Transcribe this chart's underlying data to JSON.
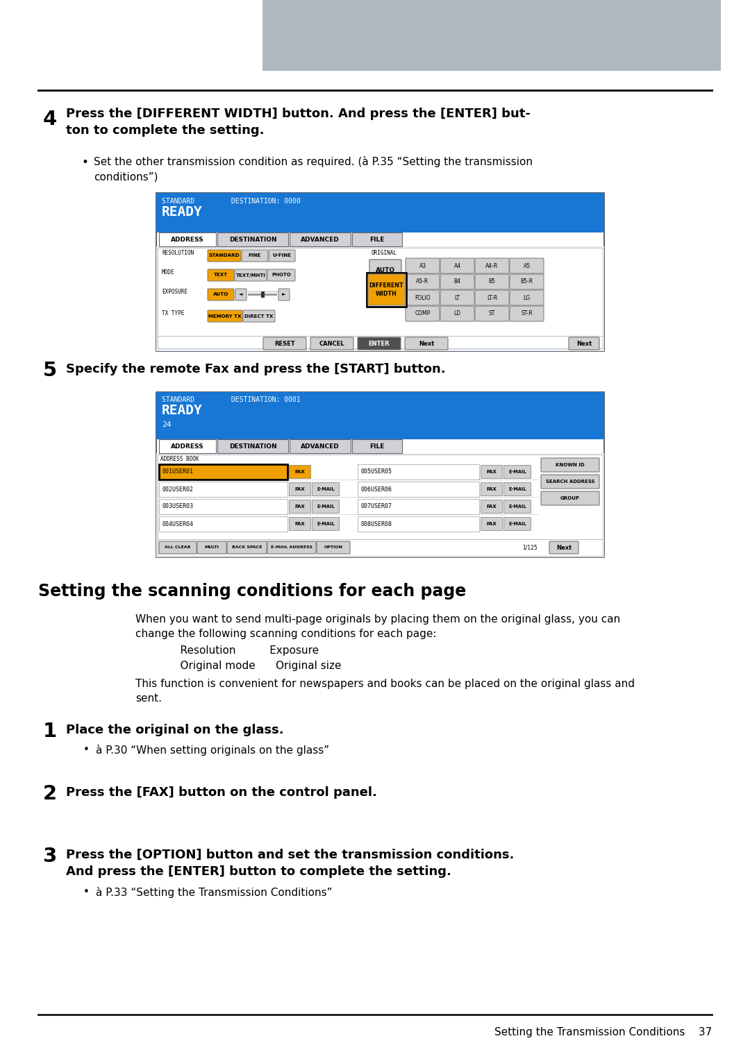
{
  "page_bg": "#ffffff",
  "header_bg": "#adb9bf",
  "footer_line_color": "#1a1a1a",
  "top_line_color": "#1a1a1a",
  "footer_text": "Setting the Transmission Conditions    37",
  "step4_bold": "Press the [DIFFERENT WIDTH] button. And press the [ENTER] but-\nton to complete the setting.",
  "step4_bullet": "Set the other transmission condition as required. (à P.35 “Setting the transmission\nconditions”)",
  "step5_bold": "Specify the remote Fax and press the [START] button.",
  "section_title": "Setting the scanning conditions for each page",
  "section_body1": "When you want to send multi-page originals by placing them on the original glass, you can\nchange the following scanning conditions for each page:",
  "section_row1": "    Resolution          Exposure",
  "section_row2": "    Original mode      Original size",
  "section_body2": "This function is convenient for newspapers and books can be placed on the original glass and\nsent.",
  "step1_bold": "Place the original on the glass.",
  "step1_bullet": "à P.30 “When setting originals on the glass”",
  "step2_bold": "Press the [FAX] button on the control panel.",
  "step3_bold": "Press the [OPTION] button and set the transmission conditions.\nAnd press the [ENTER] button to complete the setting.",
  "step3_bullet": "à P.33 “Setting the Transmission Conditions”",
  "blue_bg": "#1877d4",
  "orange_btn": "#f0a000",
  "gray_btn": "#d0d0d0",
  "white_btn": "#f0f0f0"
}
